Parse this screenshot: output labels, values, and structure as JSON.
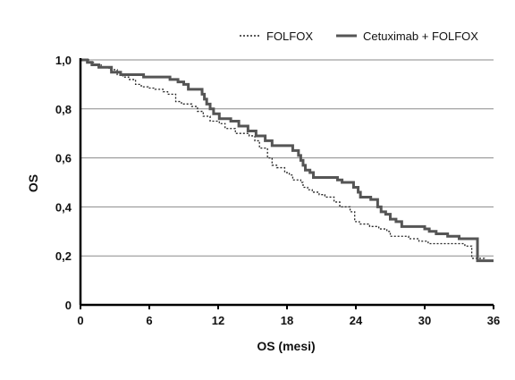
{
  "chart_data": {
    "type": "line",
    "step": true,
    "xlabel": "OS (mesi)",
    "ylabel": "OS",
    "xlim": [
      0,
      36
    ],
    "ylim": [
      0,
      1
    ],
    "xticks": [
      0,
      6,
      12,
      18,
      24,
      30,
      36
    ],
    "xtick_labels": [
      "0",
      "6",
      "12",
      "18",
      "24",
      "30",
      "36"
    ],
    "yticks": [
      0,
      0.2,
      0.4,
      0.6,
      0.8,
      1.0
    ],
    "ytick_labels": [
      "0",
      "0,2",
      "0,4",
      "0,6",
      "0,8",
      "1,0"
    ],
    "grid": "horizontal",
    "legend_position": "top-right",
    "series": [
      {
        "name": "FOLFOX",
        "style": "dotted",
        "color": "#222222",
        "points": [
          [
            0,
            1.0
          ],
          [
            0.8,
            0.99
          ],
          [
            1.2,
            0.98
          ],
          [
            1.8,
            0.97
          ],
          [
            2.5,
            0.96
          ],
          [
            3.2,
            0.94
          ],
          [
            3.7,
            0.93
          ],
          [
            4.2,
            0.92
          ],
          [
            4.8,
            0.9
          ],
          [
            5.3,
            0.89
          ],
          [
            5.9,
            0.885
          ],
          [
            6.5,
            0.88
          ],
          [
            7.2,
            0.87
          ],
          [
            7.6,
            0.86
          ],
          [
            8.3,
            0.83
          ],
          [
            8.8,
            0.82
          ],
          [
            9.3,
            0.82
          ],
          [
            9.7,
            0.81
          ],
          [
            10.2,
            0.79
          ],
          [
            10.7,
            0.77
          ],
          [
            11.3,
            0.75
          ],
          [
            12.1,
            0.74
          ],
          [
            12.6,
            0.72
          ],
          [
            13.5,
            0.7
          ],
          [
            14.7,
            0.69
          ],
          [
            15.2,
            0.67
          ],
          [
            15.6,
            0.64
          ],
          [
            16.3,
            0.6
          ],
          [
            16.7,
            0.57
          ],
          [
            17.1,
            0.56
          ],
          [
            17.8,
            0.54
          ],
          [
            18.2,
            0.53
          ],
          [
            18.5,
            0.51
          ],
          [
            19.2,
            0.5
          ],
          [
            19.4,
            0.48
          ],
          [
            19.8,
            0.47
          ],
          [
            20.2,
            0.46
          ],
          [
            20.8,
            0.45
          ],
          [
            21.3,
            0.44
          ],
          [
            22.1,
            0.42
          ],
          [
            22.6,
            0.4
          ],
          [
            23.5,
            0.38
          ],
          [
            23.9,
            0.34
          ],
          [
            24.3,
            0.33
          ],
          [
            25.2,
            0.32
          ],
          [
            26.0,
            0.31
          ],
          [
            26.7,
            0.3
          ],
          [
            27.0,
            0.28
          ],
          [
            28.6,
            0.27
          ],
          [
            29.5,
            0.26
          ],
          [
            30.3,
            0.25
          ],
          [
            33.5,
            0.24
          ],
          [
            34.1,
            0.19
          ],
          [
            35.2,
            0.18
          ],
          [
            36,
            0.18
          ]
        ]
      },
      {
        "name": "Cetuximab + FOLFOX",
        "style": "solid",
        "color": "#555555",
        "points": [
          [
            0,
            1.0
          ],
          [
            0.6,
            0.99
          ],
          [
            1.0,
            0.98
          ],
          [
            1.6,
            0.97
          ],
          [
            2.7,
            0.95
          ],
          [
            3.5,
            0.94
          ],
          [
            5.5,
            0.93
          ],
          [
            7.8,
            0.92
          ],
          [
            8.5,
            0.91
          ],
          [
            9.0,
            0.9
          ],
          [
            9.4,
            0.88
          ],
          [
            10.6,
            0.86
          ],
          [
            10.8,
            0.84
          ],
          [
            11.0,
            0.82
          ],
          [
            11.3,
            0.8
          ],
          [
            11.6,
            0.78
          ],
          [
            12.1,
            0.76
          ],
          [
            13.1,
            0.75
          ],
          [
            13.8,
            0.73
          ],
          [
            14.6,
            0.71
          ],
          [
            15.3,
            0.69
          ],
          [
            16.1,
            0.67
          ],
          [
            16.7,
            0.65
          ],
          [
            18.5,
            0.63
          ],
          [
            19.0,
            0.61
          ],
          [
            19.2,
            0.59
          ],
          [
            19.4,
            0.57
          ],
          [
            19.6,
            0.55
          ],
          [
            20.0,
            0.54
          ],
          [
            20.3,
            0.52
          ],
          [
            22.4,
            0.51
          ],
          [
            22.8,
            0.5
          ],
          [
            23.8,
            0.48
          ],
          [
            24.2,
            0.46
          ],
          [
            24.4,
            0.44
          ],
          [
            25.3,
            0.43
          ],
          [
            25.9,
            0.4
          ],
          [
            26.2,
            0.38
          ],
          [
            26.6,
            0.37
          ],
          [
            27.0,
            0.35
          ],
          [
            27.5,
            0.34
          ],
          [
            28.0,
            0.32
          ],
          [
            30.0,
            0.31
          ],
          [
            30.4,
            0.3
          ],
          [
            31.0,
            0.29
          ],
          [
            32.0,
            0.28
          ],
          [
            33.0,
            0.27
          ],
          [
            34.6,
            0.18
          ],
          [
            36,
            0.18
          ]
        ]
      }
    ]
  }
}
